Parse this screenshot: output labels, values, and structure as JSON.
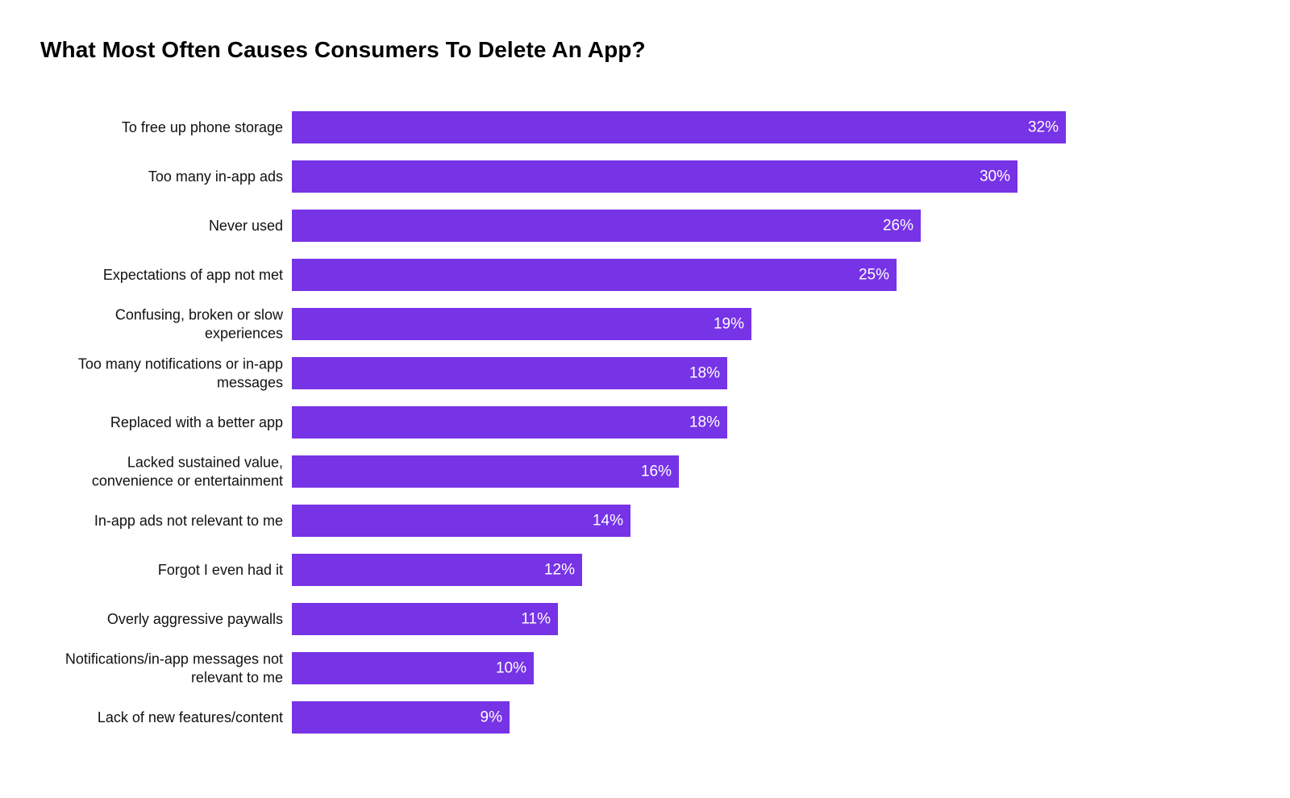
{
  "chart_data": {
    "type": "bar",
    "orientation": "horizontal",
    "title": "What Most Often Causes Consumers To Delete An App?",
    "xlabel": "",
    "ylabel": "",
    "xlim": [
      0,
      35
    ],
    "grid": false,
    "legend": "none",
    "bar_color": "#7733E6",
    "categories": [
      [
        "To free up phone storage"
      ],
      [
        "Too many in-app ads"
      ],
      [
        "Never used"
      ],
      [
        "Expectations of app not met"
      ],
      [
        "Confusing, broken or slow",
        "experiences"
      ],
      [
        "Too many notifications or in-app",
        "messages"
      ],
      [
        "Replaced with a better app"
      ],
      [
        "Lacked sustained value,",
        "convenience or entertainment"
      ],
      [
        "In-app ads not relevant to me"
      ],
      [
        "Forgot I even had it"
      ],
      [
        "Overly aggressive paywalls"
      ],
      [
        "Notifications/in-app messages not",
        "relevant to me"
      ],
      [
        "Lack of new features/content"
      ]
    ],
    "values": [
      32,
      30,
      26,
      25,
      19,
      18,
      18,
      16,
      14,
      12,
      11,
      10,
      9
    ],
    "value_labels": [
      "32%",
      "30%",
      "26%",
      "25%",
      "19%",
      "18%",
      "18%",
      "16%",
      "14%",
      "12%",
      "11%",
      "10%",
      "9%"
    ]
  }
}
